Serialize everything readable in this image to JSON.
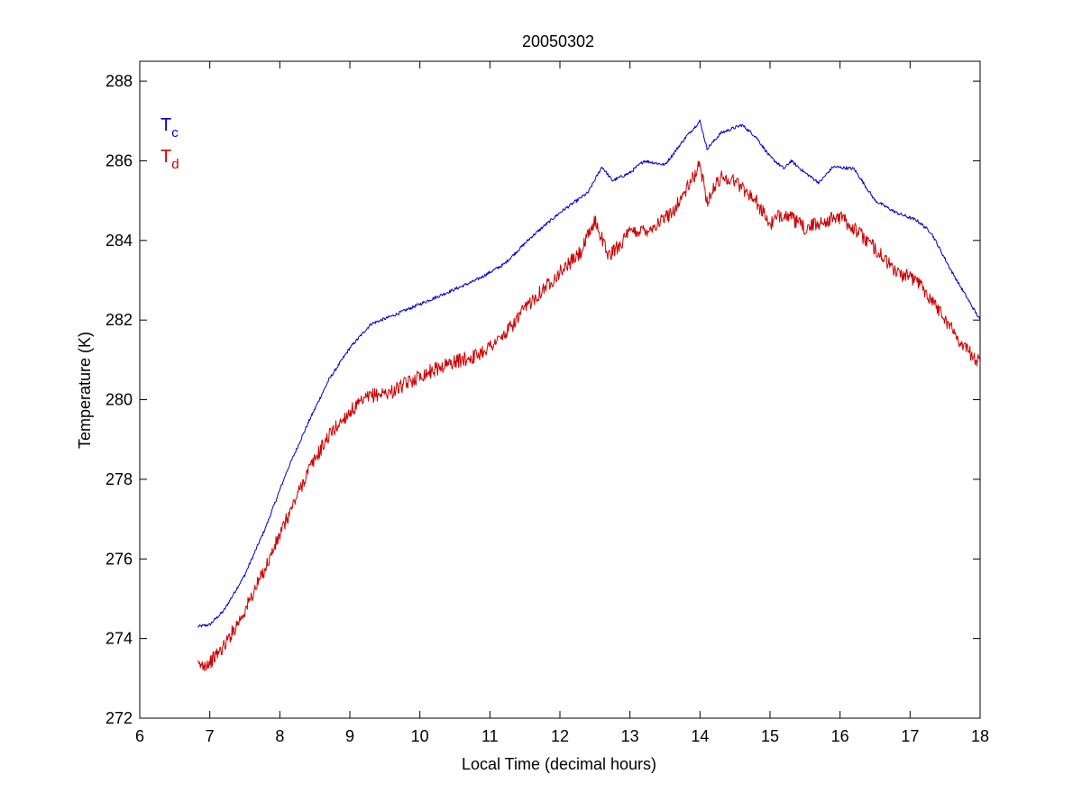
{
  "chart_data": {
    "type": "line",
    "title": "20050302",
    "xlabel": "Local Time (decimal hours)",
    "ylabel": "Temperature (K)",
    "xlim": [
      6,
      18
    ],
    "ylim": [
      272,
      288.5
    ],
    "xticks": [
      6,
      7,
      8,
      9,
      10,
      11,
      12,
      13,
      14,
      15,
      16,
      17,
      18
    ],
    "yticks": [
      272,
      274,
      276,
      278,
      280,
      282,
      284,
      286,
      288
    ],
    "grid": false,
    "legend_position": "top-left",
    "series": [
      {
        "name": "T",
        "subscript": "c",
        "color": "#0000cc",
        "noise": 0.04,
        "points": [
          [
            6.83,
            274.3
          ],
          [
            7.0,
            274.35
          ],
          [
            7.2,
            274.7
          ],
          [
            7.5,
            275.6
          ],
          [
            7.8,
            276.8
          ],
          [
            8.1,
            278.2
          ],
          [
            8.4,
            279.4
          ],
          [
            8.7,
            280.5
          ],
          [
            9.0,
            281.3
          ],
          [
            9.3,
            281.9
          ],
          [
            9.6,
            282.1
          ],
          [
            10.0,
            282.4
          ],
          [
            10.4,
            282.7
          ],
          [
            10.8,
            283.0
          ],
          [
            11.2,
            283.4
          ],
          [
            11.6,
            284.1
          ],
          [
            12.0,
            284.7
          ],
          [
            12.4,
            285.2
          ],
          [
            12.6,
            285.85
          ],
          [
            12.75,
            285.5
          ],
          [
            13.0,
            285.7
          ],
          [
            13.2,
            286.0
          ],
          [
            13.5,
            285.9
          ],
          [
            13.8,
            286.6
          ],
          [
            14.0,
            287.0
          ],
          [
            14.1,
            286.3
          ],
          [
            14.3,
            286.7
          ],
          [
            14.6,
            286.9
          ],
          [
            14.8,
            286.6
          ],
          [
            15.0,
            286.1
          ],
          [
            15.2,
            285.8
          ],
          [
            15.3,
            286.0
          ],
          [
            15.5,
            285.7
          ],
          [
            15.7,
            285.45
          ],
          [
            15.9,
            285.85
          ],
          [
            16.2,
            285.8
          ],
          [
            16.5,
            285.0
          ],
          [
            16.8,
            284.7
          ],
          [
            17.1,
            284.5
          ],
          [
            17.3,
            284.2
          ],
          [
            17.6,
            283.2
          ],
          [
            17.8,
            282.6
          ],
          [
            18.0,
            282.0
          ]
        ]
      },
      {
        "name": "T",
        "subscript": "d",
        "color": "#cc0000",
        "noise": 0.18,
        "points": [
          [
            6.83,
            273.3
          ],
          [
            7.0,
            273.4
          ],
          [
            7.2,
            273.8
          ],
          [
            7.5,
            274.7
          ],
          [
            7.8,
            275.8
          ],
          [
            8.1,
            277.0
          ],
          [
            8.4,
            278.2
          ],
          [
            8.7,
            279.1
          ],
          [
            9.0,
            279.7
          ],
          [
            9.3,
            280.1
          ],
          [
            9.6,
            280.2
          ],
          [
            10.0,
            280.6
          ],
          [
            10.4,
            280.9
          ],
          [
            10.8,
            281.1
          ],
          [
            11.2,
            281.6
          ],
          [
            11.6,
            282.5
          ],
          [
            12.0,
            283.2
          ],
          [
            12.3,
            283.7
          ],
          [
            12.5,
            284.5
          ],
          [
            12.7,
            283.6
          ],
          [
            13.0,
            284.2
          ],
          [
            13.3,
            284.3
          ],
          [
            13.6,
            284.7
          ],
          [
            13.85,
            285.4
          ],
          [
            14.0,
            285.9
          ],
          [
            14.1,
            285.0
          ],
          [
            14.3,
            285.6
          ],
          [
            14.5,
            285.5
          ],
          [
            14.8,
            285.0
          ],
          [
            15.0,
            284.4
          ],
          [
            15.2,
            284.7
          ],
          [
            15.5,
            284.3
          ],
          [
            15.8,
            284.5
          ],
          [
            16.0,
            284.6
          ],
          [
            16.2,
            284.3
          ],
          [
            16.5,
            283.8
          ],
          [
            16.8,
            283.2
          ],
          [
            17.1,
            283.0
          ],
          [
            17.4,
            282.3
          ],
          [
            17.7,
            281.5
          ],
          [
            18.0,
            280.9
          ]
        ]
      }
    ]
  }
}
